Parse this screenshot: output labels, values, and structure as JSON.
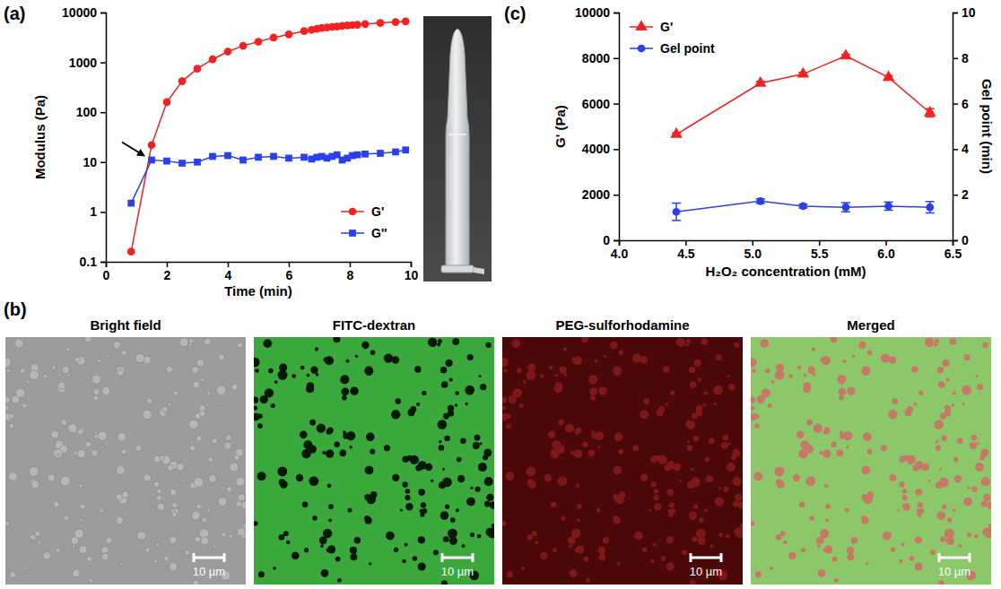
{
  "chart_data": [
    {
      "type": "line",
      "panel": "(a)",
      "x_label": "Time (min)",
      "y_label": "Modulus (Pa)",
      "x": [
        0.83,
        1.5,
        2,
        2.5,
        3,
        3.5,
        4,
        4.5,
        5,
        5.5,
        6,
        6.5,
        6.75,
        6.92,
        7.08,
        7.25,
        7.42,
        7.58,
        7.75,
        7.92,
        8.08,
        8.25,
        8.5,
        9,
        9.5,
        9.83
      ],
      "series": [
        {
          "name": "G'",
          "color": "#f22222",
          "marker": "circle",
          "values": [
            0.16,
            22,
            160,
            420,
            750,
            1150,
            1650,
            2150,
            2600,
            3150,
            3650,
            4250,
            4500,
            4700,
            4900,
            5000,
            5150,
            5250,
            5400,
            5500,
            5600,
            5700,
            5850,
            6200,
            6450,
            6650
          ]
        },
        {
          "name": "G''",
          "color": "#2a3ff0",
          "marker": "square",
          "values": [
            1.5,
            11,
            10.5,
            9.5,
            10,
            13,
            13.5,
            11,
            12.5,
            13,
            12,
            12.5,
            11.5,
            12.5,
            13,
            12,
            13,
            14,
            11,
            12,
            13.5,
            14,
            14.5,
            15,
            16,
            17.5
          ]
        }
      ],
      "xlim": [
        0,
        10
      ],
      "xticks": [
        0,
        2,
        4,
        6,
        8,
        10
      ],
      "ylim": [
        0.1,
        10000
      ],
      "yticks": [
        0.1,
        1,
        10,
        100,
        1000,
        10000
      ],
      "log": "y",
      "legend": "lower right"
    },
    {
      "type": "line",
      "panel": "(c)",
      "x_label": "H₂O₂ concentration (mM)",
      "y_label": "G' (Pa)",
      "y2_label": "Gel point (min)",
      "x": [
        4.43,
        5.06,
        5.38,
        5.7,
        6.02,
        6.33
      ],
      "series": [
        {
          "name": "G'",
          "color": "#f22222",
          "marker": "triangle",
          "values": [
            4650,
            6900,
            7300,
            8100,
            7150,
            5600
          ],
          "errors": [
            60,
            80,
            70,
            60,
            80,
            180
          ]
        },
        {
          "name": "Gel point",
          "color": "#2a3ff0",
          "marker": "circle",
          "axis": "y2",
          "values": [
            1.25,
            1.72,
            1.5,
            1.45,
            1.5,
            1.45
          ],
          "errors": [
            0.38,
            0.1,
            0.08,
            0.2,
            0.18,
            0.25
          ]
        }
      ],
      "xlim": [
        4,
        6.5
      ],
      "xticks": [
        {
          "value": 4,
          "label": "4.0"
        },
        4.5,
        {
          "value": 5,
          "label": "5.0"
        },
        5.5,
        {
          "value": 6,
          "label": "6.0"
        },
        6.5
      ],
      "ylim": [
        0,
        10000
      ],
      "yticks": [
        0,
        2000,
        4000,
        6000,
        8000,
        10000
      ],
      "y2lim": [
        0,
        10
      ],
      "y2ticks": [
        0,
        2,
        4,
        6,
        8,
        10
      ],
      "legend": "upper left"
    }
  ],
  "panel_b": {
    "panel": "(b)",
    "images": [
      {
        "title": "Bright field",
        "scale_bar": "10 µm"
      },
      {
        "title": "FITC-dextran",
        "scale_bar": "10 µm"
      },
      {
        "title": "PEG-sulforhodamine",
        "scale_bar": "10 µm"
      },
      {
        "title": "Merged",
        "scale_bar": "10 µm"
      }
    ]
  }
}
